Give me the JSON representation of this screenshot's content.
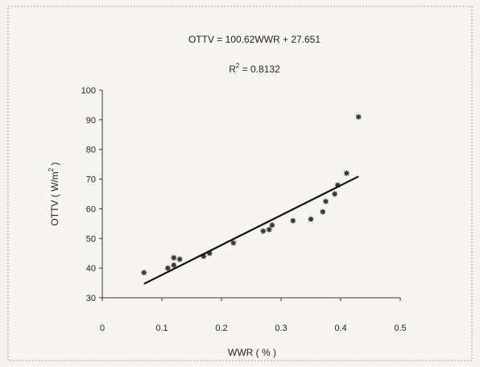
{
  "chart_data": {
    "type": "scatter",
    "annotations": {
      "equation": "OTTV = 100.62WWR + 27.651",
      "r2_label": "R",
      "r2_sup": "2",
      "r2_value": " = 0.8132"
    },
    "xlabel": "WWR ( % )",
    "ylabel_main": "OTTV  ( W/m",
    "ylabel_sup": "2",
    "ylabel_close": " )",
    "xlim": [
      0,
      0.5
    ],
    "ylim": [
      30,
      100
    ],
    "x_ticks": [
      0,
      0.1,
      0.2,
      0.3,
      0.4,
      0.5
    ],
    "x_tick_labels": [
      "0",
      "0.1",
      "0.2",
      "0.3",
      "0.4",
      "0.5"
    ],
    "y_ticks": [
      30,
      40,
      50,
      60,
      70,
      80,
      90,
      100
    ],
    "y_tick_labels": [
      "30",
      "40",
      "50",
      "60",
      "70",
      "80",
      "90",
      "100"
    ],
    "grid": false,
    "points": [
      {
        "x": 0.07,
        "y": 38.5
      },
      {
        "x": 0.11,
        "y": 40.0
      },
      {
        "x": 0.12,
        "y": 41.0
      },
      {
        "x": 0.12,
        "y": 43.5
      },
      {
        "x": 0.13,
        "y": 43.0
      },
      {
        "x": 0.17,
        "y": 44.0
      },
      {
        "x": 0.18,
        "y": 45.0
      },
      {
        "x": 0.22,
        "y": 48.5
      },
      {
        "x": 0.27,
        "y": 52.5
      },
      {
        "x": 0.28,
        "y": 53.0
      },
      {
        "x": 0.285,
        "y": 54.5
      },
      {
        "x": 0.32,
        "y": 56.0
      },
      {
        "x": 0.35,
        "y": 56.5
      },
      {
        "x": 0.37,
        "y": 59.0
      },
      {
        "x": 0.375,
        "y": 62.5
      },
      {
        "x": 0.39,
        "y": 65.0
      },
      {
        "x": 0.395,
        "y": 68.0
      },
      {
        "x": 0.41,
        "y": 72.0
      },
      {
        "x": 0.43,
        "y": 91.0
      }
    ],
    "trendline": {
      "x_start": 0.07,
      "x_end": 0.43,
      "slope": 100.62,
      "intercept": 27.651
    },
    "colors": {
      "marker": "#3a3a3a",
      "trendline": "#111111",
      "axis": "#333333"
    }
  }
}
